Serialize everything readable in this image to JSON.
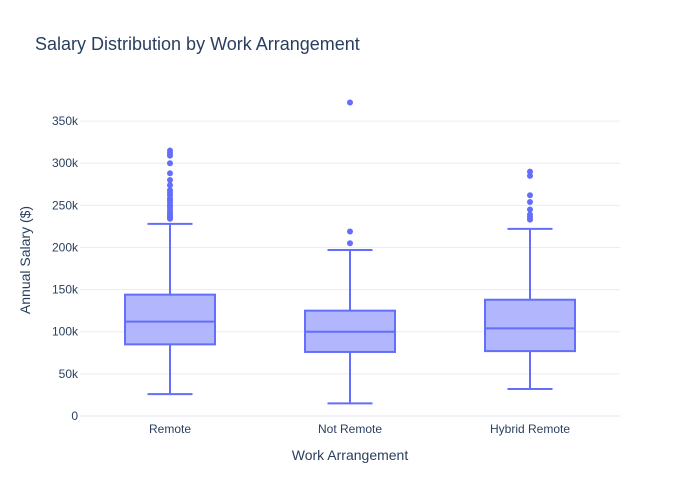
{
  "chart_data": {
    "type": "box",
    "title": "Salary Distribution by Work Arrangement",
    "xlabel": "Work Arrangement",
    "ylabel": "Annual Salary ($)",
    "ylim": [
      0,
      375000
    ],
    "yticks": [
      0,
      50000,
      100000,
      150000,
      200000,
      250000,
      300000,
      350000
    ],
    "ytick_labels": [
      "0",
      "50k",
      "100k",
      "150k",
      "200k",
      "250k",
      "300k",
      "350k"
    ],
    "grid": true,
    "legend": "none",
    "colors": {
      "line": "#636efa",
      "fill": "#b2b6fc"
    },
    "categories": [
      "Remote",
      "Not Remote",
      "Hybrid Remote"
    ],
    "boxes": [
      {
        "category": "Remote",
        "min": 26000,
        "q1": 85000,
        "median": 112000,
        "q3": 144000,
        "max": 228000,
        "outliers": [
          234000,
          236000,
          238000,
          240000,
          242000,
          245000,
          248000,
          250000,
          253000,
          256000,
          258000,
          262000,
          265000,
          268000,
          274000,
          280000,
          288000,
          300000,
          309000,
          312000,
          315000
        ]
      },
      {
        "category": "Not Remote",
        "min": 15000,
        "q1": 76000,
        "median": 100000,
        "q3": 125000,
        "max": 197000,
        "outliers": [
          205000,
          219000,
          372000
        ]
      },
      {
        "category": "Hybrid Remote",
        "min": 32000,
        "q1": 77000,
        "median": 104000,
        "q3": 138000,
        "max": 222000,
        "outliers": [
          233000,
          236000,
          239000,
          245000,
          254000,
          262000,
          285000,
          290000
        ]
      }
    ]
  }
}
